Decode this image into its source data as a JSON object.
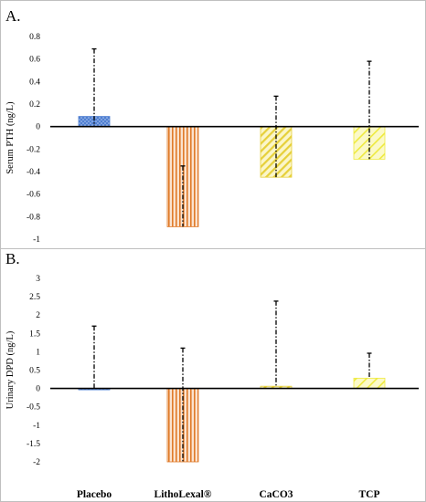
{
  "chart_data": [
    {
      "type": "bar",
      "panel_label": "A.",
      "ylabel": "Serum PTH (ng/L)",
      "ylim": [
        -1,
        0.8
      ],
      "yticks": [
        0.8,
        0.6,
        0.4,
        0.2,
        0,
        -0.2,
        -0.4,
        -0.6,
        -0.8,
        -1
      ],
      "categories": [
        "Placebo",
        "LithoLexal®",
        "CaCO3",
        "TCP"
      ],
      "values": [
        0.09,
        -0.89,
        -0.45,
        -0.29
      ],
      "error_high": [
        0.69,
        -0.35,
        0.27,
        0.58
      ],
      "error_low": [
        0,
        -0.89,
        -0.45,
        -0.29
      ],
      "bar_colors": [
        "#4f7fd1",
        "#e07b2a",
        "#e6d03a",
        "#eeea3f"
      ],
      "bar_patterns": [
        "dots",
        "vertical",
        "diagonal",
        "diagonal-wide"
      ],
      "grid": false
    },
    {
      "type": "bar",
      "panel_label": "B.",
      "ylabel": "Urinary DPD (ng/L)",
      "ylim": [
        -2,
        3
      ],
      "yticks": [
        3,
        2.5,
        2,
        1.5,
        1,
        0.5,
        0,
        -0.5,
        -1,
        -1.5,
        -2
      ],
      "categories": [
        "Placebo",
        "LithoLexal®",
        "CaCO3",
        "TCP"
      ],
      "values": [
        -0.02,
        -2.0,
        0.06,
        0.28
      ],
      "error_high": [
        1.7,
        1.1,
        2.38,
        0.96
      ],
      "error_low": [
        -0.02,
        -2.0,
        0.06,
        0.28
      ],
      "bar_colors": [
        "#4f7fd1",
        "#e07b2a",
        "#e6d03a",
        "#eeea3f"
      ],
      "bar_patterns": [
        "dots",
        "vertical",
        "diagonal",
        "diagonal-wide"
      ],
      "grid": false
    }
  ]
}
